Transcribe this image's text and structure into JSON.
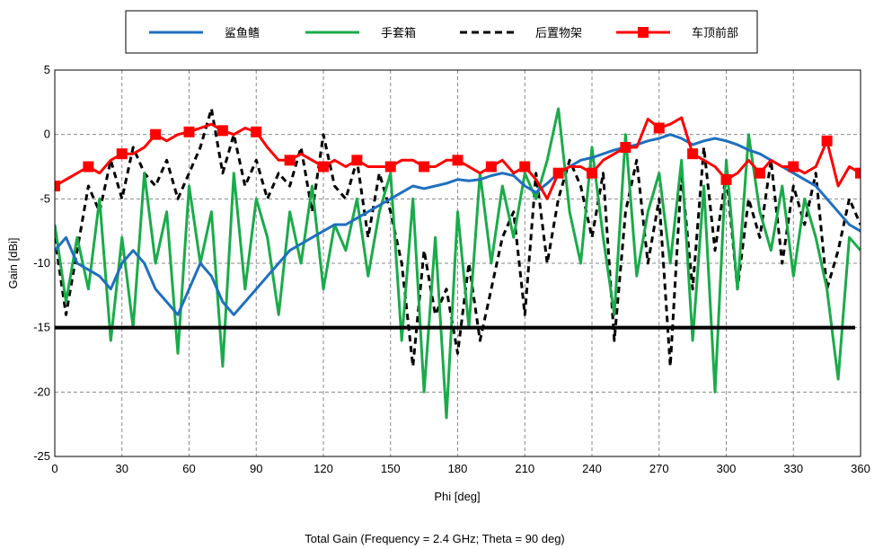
{
  "chart_data": {
    "type": "line",
    "caption": "Total Gain (Frequency = 2.4 GHz; Theta = 90 deg)",
    "xlabel": "Phi [deg]",
    "ylabel": "Gain [dBi]",
    "xlim": [
      0,
      360
    ],
    "ylim": [
      -25,
      5
    ],
    "xticks": [
      "0",
      "30",
      "60",
      "90",
      "120",
      "150",
      "180",
      "210",
      "240",
      "270",
      "300",
      "330",
      "360"
    ],
    "yticks": [
      "5",
      "0",
      "-5",
      "-10",
      "-15",
      "-20",
      "-25"
    ],
    "grid": true,
    "legend_position": "top-center",
    "reference_line": {
      "y": -15,
      "color": "#000000"
    },
    "series": [
      {
        "name": "鲨鱼鳍",
        "color": "#1f6fbf",
        "style": "solid",
        "x": [
          0,
          5,
          10,
          15,
          20,
          25,
          30,
          35,
          40,
          45,
          50,
          55,
          60,
          65,
          70,
          75,
          80,
          85,
          90,
          95,
          100,
          105,
          110,
          115,
          120,
          125,
          130,
          135,
          140,
          145,
          150,
          155,
          160,
          165,
          170,
          175,
          180,
          185,
          190,
          195,
          200,
          205,
          210,
          215,
          220,
          225,
          230,
          235,
          240,
          245,
          250,
          255,
          260,
          265,
          270,
          275,
          280,
          285,
          290,
          295,
          300,
          305,
          310,
          315,
          320,
          325,
          330,
          335,
          340,
          345,
          350,
          355,
          360
        ],
        "y": [
          -9,
          -8,
          -10,
          -10.5,
          -11,
          -12,
          -10,
          -9,
          -10,
          -12,
          -13,
          -14,
          -12,
          -10,
          -11,
          -13,
          -14,
          -13,
          -12,
          -11,
          -10,
          -9,
          -8.5,
          -8,
          -7.5,
          -7,
          -7,
          -6.5,
          -6,
          -5.5,
          -5,
          -4.5,
          -4,
          -4.2,
          -4,
          -3.8,
          -3.5,
          -3.6,
          -3.5,
          -3.2,
          -3,
          -3.2,
          -4,
          -4.5,
          -3.8,
          -3,
          -2.5,
          -2,
          -1.8,
          -1.5,
          -1.2,
          -1,
          -0.8,
          -0.5,
          -0.3,
          0,
          -0.3,
          -0.8,
          -0.5,
          -0.3,
          -0.5,
          -0.8,
          -1.2,
          -1.5,
          -2,
          -2.5,
          -3,
          -3.5,
          -4,
          -5,
          -6,
          -7,
          -7.5
        ]
      },
      {
        "name": "手套箱",
        "color": "#1aab4a",
        "style": "solid",
        "x": [
          0,
          5,
          10,
          15,
          20,
          25,
          30,
          35,
          40,
          45,
          50,
          55,
          60,
          65,
          70,
          75,
          80,
          85,
          90,
          95,
          100,
          105,
          110,
          115,
          120,
          125,
          130,
          135,
          140,
          145,
          150,
          155,
          160,
          165,
          170,
          175,
          180,
          185,
          190,
          195,
          200,
          205,
          210,
          215,
          220,
          225,
          230,
          235,
          240,
          245,
          250,
          255,
          260,
          265,
          270,
          275,
          280,
          285,
          290,
          295,
          300,
          305,
          310,
          315,
          320,
          325,
          330,
          335,
          340,
          345,
          350,
          355,
          360
        ],
        "y": [
          -7,
          -13,
          -8,
          -12,
          -5,
          -16,
          -8,
          -15,
          -3,
          -10,
          -6,
          -17,
          -4,
          -10,
          -6,
          -18,
          -3,
          -12,
          -5,
          -8,
          -14,
          -6,
          -10,
          -4,
          -12,
          -7,
          -9,
          -5,
          -11,
          -6,
          -3,
          -16,
          -5,
          -20,
          -8,
          -22,
          -6,
          -15,
          -3,
          -10,
          -4,
          -8,
          -3,
          -5,
          -2,
          2,
          -6,
          -10,
          -1,
          -8,
          -14,
          0,
          -11,
          -6,
          -3,
          -10,
          -2,
          -16,
          -4,
          -20,
          -2,
          -12,
          0,
          -6,
          -9,
          -4,
          -11,
          -5,
          -8,
          -12,
          -19,
          -8,
          -9
        ]
      },
      {
        "name": "后置物架",
        "color": "#000000",
        "style": "dashed",
        "x": [
          0,
          5,
          10,
          15,
          20,
          25,
          30,
          35,
          40,
          45,
          50,
          55,
          60,
          65,
          70,
          75,
          80,
          85,
          90,
          95,
          100,
          105,
          110,
          115,
          120,
          125,
          130,
          135,
          140,
          145,
          150,
          155,
          160,
          165,
          170,
          175,
          180,
          185,
          190,
          195,
          200,
          205,
          210,
          215,
          220,
          225,
          230,
          235,
          240,
          245,
          250,
          255,
          260,
          265,
          270,
          275,
          280,
          285,
          290,
          295,
          300,
          305,
          310,
          315,
          320,
          325,
          330,
          335,
          340,
          345,
          350,
          355,
          360
        ],
        "y": [
          -8,
          -14,
          -9,
          -4,
          -6,
          -2,
          -5,
          -1,
          -3,
          -4,
          -2,
          -5,
          -3,
          -1,
          2,
          -3,
          0,
          -4,
          -2,
          -5,
          -3,
          -4,
          -1,
          -6,
          0,
          -4,
          -5,
          -2,
          -8,
          -3,
          -6,
          -10,
          -18,
          -9,
          -14,
          -12,
          -17,
          -10,
          -16,
          -12,
          -8,
          -6,
          -14,
          -3,
          -10,
          -5,
          -2,
          -4,
          -8,
          -3,
          -16,
          -6,
          -2,
          -10,
          -5,
          -18,
          -3,
          -12,
          -1,
          -9,
          -3,
          -12,
          -5,
          -8,
          -2,
          -10,
          -4,
          -7,
          -3,
          -12,
          -9,
          -5,
          -7
        ]
      },
      {
        "name": "车顶前部",
        "color": "#ff0000",
        "style": "solid-square-markers",
        "x": [
          0,
          5,
          10,
          15,
          20,
          25,
          30,
          35,
          40,
          45,
          50,
          55,
          60,
          65,
          70,
          75,
          80,
          85,
          90,
          95,
          100,
          105,
          110,
          115,
          120,
          125,
          130,
          135,
          140,
          145,
          150,
          155,
          160,
          165,
          170,
          175,
          180,
          185,
          190,
          195,
          200,
          205,
          210,
          215,
          220,
          225,
          230,
          235,
          240,
          245,
          250,
          255,
          260,
          265,
          270,
          275,
          280,
          285,
          290,
          295,
          300,
          305,
          310,
          315,
          320,
          325,
          330,
          335,
          340,
          345,
          350,
          355,
          360
        ],
        "y": [
          -4,
          -3.5,
          -3,
          -2.5,
          -3,
          -2,
          -1.5,
          -1.5,
          -1,
          0,
          -0.5,
          0,
          0.2,
          0.5,
          0.8,
          0.3,
          0,
          0.5,
          0.2,
          -1,
          -2,
          -2,
          -1.5,
          -2,
          -2.5,
          -2,
          -2.5,
          -2,
          -2.5,
          -2.5,
          -2.5,
          -2,
          -2,
          -2.5,
          -2.5,
          -2,
          -2,
          -2.5,
          -3,
          -2.5,
          -2,
          -3,
          -2.5,
          -3.5,
          -5,
          -3,
          -2.5,
          -2.5,
          -3,
          -2,
          -1.5,
          -1,
          -1,
          1.2,
          0.5,
          0.8,
          1.3,
          -1.5,
          -2,
          -2.5,
          -3.5,
          -3,
          -2,
          -3,
          -2,
          -2.5,
          -2.5,
          -3,
          -2.5,
          -0.5,
          -4,
          -2.5,
          -3
        ]
      }
    ]
  }
}
